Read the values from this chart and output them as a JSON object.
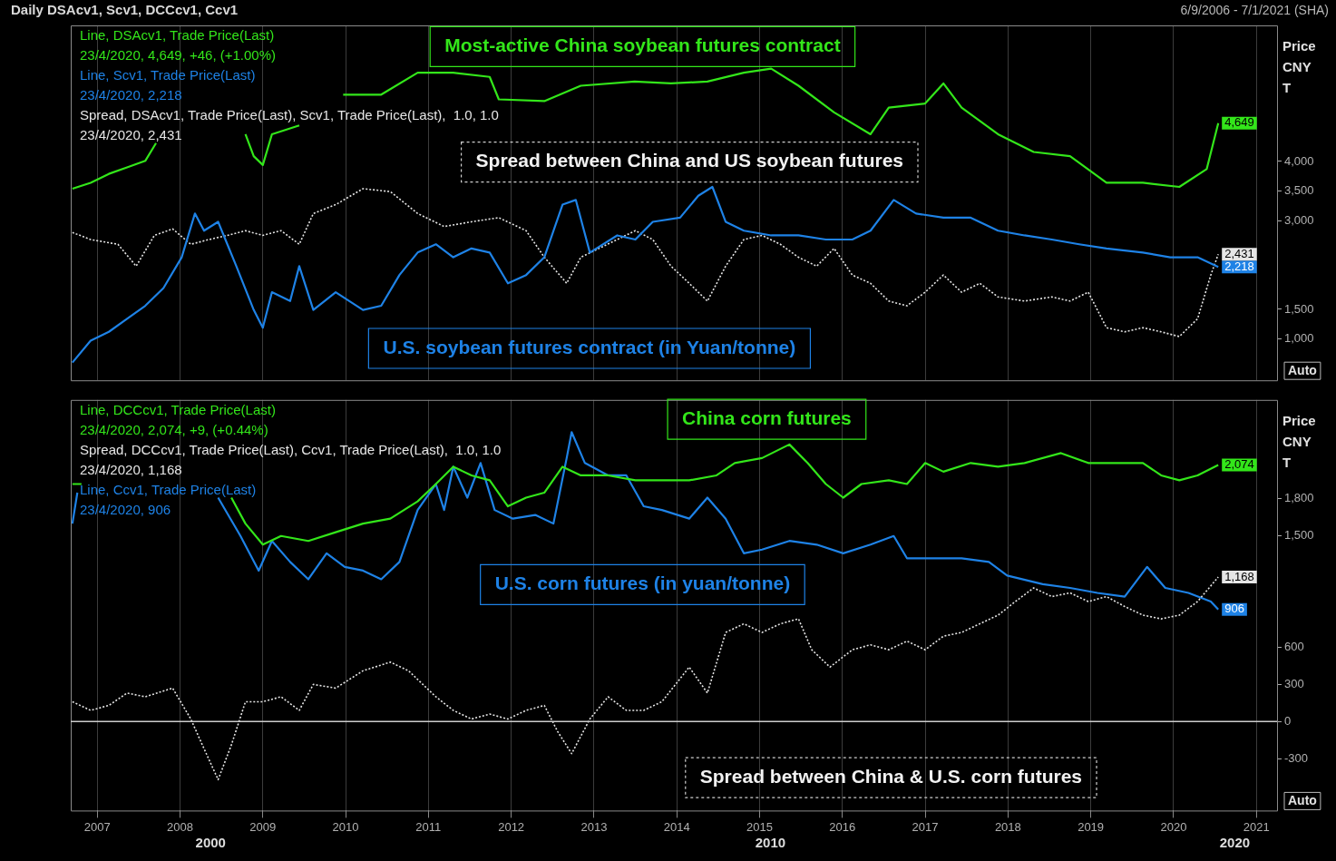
{
  "chart_data": [
    {
      "type": "line",
      "title": "Daily DSAcv1, Scv1, DCCcv1, Ccv1",
      "subtitle": "6/9/2006 - 7/1/2021 (SHA)",
      "ylabel": "Price CNY T",
      "xlim": [
        2006.68,
        2021.25
      ],
      "xticks": [
        2007,
        2008,
        2009,
        2010,
        2011,
        2012,
        2013,
        2014,
        2015,
        2016,
        2017,
        2018,
        2019,
        2020,
        2021
      ],
      "ylim": [
        300,
        6300
      ],
      "yticks": [
        {
          "value": 1000,
          "label": "1,000"
        },
        {
          "value": 1500,
          "label": "1,500"
        },
        {
          "value": 3000,
          "label": "3,000"
        },
        {
          "value": 3500,
          "label": "3,500"
        },
        {
          "value": 4000,
          "label": "4,000"
        }
      ],
      "tick_labels": "y",
      "grid": "x",
      "legend": "top left",
      "annotations": [
        "Most-active China soybean futures contract",
        "U.S. soybean futures contract (in Yuan/tonne)",
        "Spread between China and US soybean futures",
        "Auto"
      ],
      "series": [
        {
          "name": "Line, DSAcv1, Trade Price(Last)\n23/4/2020, 4,649, +46, (+1.00%)",
          "color": "#33e61a",
          "line_style": "solid",
          "x": [
            2006.7,
            2006.92,
            2007.14,
            2007.36,
            2007.58,
            2007.71,
            2008.2,
            2008.79,
            2008.89,
            2009.0,
            2009.11,
            2009.44,
            2009.7,
            2009.97,
            2010.43,
            2010.87,
            2011.3,
            2011.74,
            2011.85,
            2012.4,
            2012.84,
            2013.49,
            2013.93,
            2014.37,
            2014.81,
            2015.14,
            2015.47,
            2015.9,
            2016.34,
            2016.56,
            2017.0,
            2017.22,
            2017.44,
            2017.88,
            2018.31,
            2018.75,
            2019.19,
            2019.63,
            2020.07,
            2020.4,
            2020.54
          ],
          "values": [
            3540,
            3640,
            3790,
            3900,
            4010,
            4310,
            null,
            4460,
            4090,
            3940,
            4460,
            4610,
            null,
            5130,
            5130,
            5500,
            5500,
            5430,
            5050,
            5020,
            5280,
            5350,
            5320,
            5350,
            5500,
            5570,
            5280,
            4830,
            4460,
            4910,
            4980,
            5320,
            4910,
            4460,
            4160,
            4090,
            3640,
            3640,
            3570,
            3870,
            4649
          ],
          "value_labels": [
            null,
            null,
            null,
            null,
            null,
            null,
            null,
            null,
            null,
            null,
            null,
            null,
            null,
            null,
            null,
            null,
            null,
            null,
            null,
            null,
            null,
            null,
            null,
            null,
            null,
            null,
            null,
            null,
            null,
            null,
            null,
            null,
            null,
            null,
            null,
            null,
            null,
            null,
            null,
            null,
            "4,649"
          ]
        },
        {
          "name": "Line, Scv1, Trade Price(Last)\n23/4/2020, 2,218",
          "color": "#1e82e6",
          "line_style": "solid",
          "x": [
            2006.7,
            2006.92,
            2007.14,
            2007.36,
            2007.58,
            2007.8,
            2008.02,
            2008.18,
            2008.29,
            2008.46,
            2008.68,
            2008.89,
            2009.0,
            2009.11,
            2009.33,
            2009.44,
            2009.61,
            2009.88,
            2010.21,
            2010.43,
            2010.65,
            2010.87,
            2011.09,
            2011.3,
            2011.52,
            2011.74,
            2011.96,
            2012.18,
            2012.4,
            2012.62,
            2012.78,
            2012.95,
            2013.28,
            2013.5,
            2013.71,
            2014.04,
            2014.26,
            2014.43,
            2014.59,
            2014.81,
            2015.14,
            2015.47,
            2015.8,
            2016.12,
            2016.34,
            2016.62,
            2016.89,
            2017.22,
            2017.55,
            2017.88,
            2018.2,
            2018.53,
            2018.86,
            2019.19,
            2019.63,
            2019.96,
            2020.29,
            2020.54
          ],
          "values": [
            600,
            970,
            1120,
            1340,
            1560,
            1860,
            2380,
            3120,
            2830,
            2980,
            2230,
            1490,
            1190,
            1790,
            1640,
            2230,
            1490,
            1790,
            1490,
            1560,
            2080,
            2460,
            2600,
            2380,
            2530,
            2460,
            1940,
            2080,
            2380,
            3270,
            3350,
            2460,
            2750,
            2680,
            2980,
            3050,
            3420,
            3570,
            2980,
            2830,
            2750,
            2750,
            2680,
            2680,
            2830,
            3350,
            3120,
            3050,
            3050,
            2830,
            2750,
            2680,
            2600,
            2530,
            2460,
            2380,
            2380,
            2218
          ],
          "value_labels": [
            null,
            null,
            null,
            null,
            null,
            null,
            null,
            null,
            null,
            null,
            null,
            null,
            null,
            null,
            null,
            null,
            null,
            null,
            null,
            null,
            null,
            null,
            null,
            null,
            null,
            null,
            null,
            null,
            null,
            null,
            null,
            null,
            null,
            null,
            null,
            null,
            null,
            null,
            null,
            null,
            null,
            null,
            null,
            null,
            null,
            null,
            null,
            null,
            null,
            null,
            null,
            null,
            null,
            null,
            null,
            null,
            null,
            "2,218"
          ]
        },
        {
          "name": "Spread, DSAcv1, Trade Price(Last), Scv1, Trade Price(Last),  1.0, 1.0\n23/4/2020, 2,431",
          "color": "#e6e6e6",
          "line_style": "dotted",
          "x": [
            2006.7,
            2006.92,
            2007.25,
            2007.47,
            2007.69,
            2007.91,
            2008.13,
            2008.35,
            2008.57,
            2008.79,
            2009.0,
            2009.22,
            2009.44,
            2009.61,
            2009.88,
            2010.21,
            2010.54,
            2010.87,
            2011.19,
            2011.52,
            2011.85,
            2012.18,
            2012.4,
            2012.67,
            2012.84,
            2013.06,
            2013.28,
            2013.5,
            2013.71,
            2013.93,
            2014.15,
            2014.37,
            2014.59,
            2014.81,
            2015.03,
            2015.25,
            2015.47,
            2015.69,
            2015.9,
            2016.12,
            2016.34,
            2016.56,
            2016.78,
            2017.0,
            2017.22,
            2017.44,
            2017.66,
            2017.88,
            2018.2,
            2018.53,
            2018.75,
            2018.97,
            2019.19,
            2019.41,
            2019.63,
            2019.85,
            2020.07,
            2020.29,
            2020.45,
            2020.54
          ],
          "values": [
            2800,
            2680,
            2600,
            2230,
            2750,
            2860,
            2600,
            2680,
            2750,
            2830,
            2750,
            2830,
            2600,
            3120,
            3270,
            3540,
            3490,
            3120,
            2900,
            2980,
            3050,
            2830,
            2380,
            1940,
            2380,
            2530,
            2680,
            2830,
            2680,
            2230,
            1940,
            1640,
            2230,
            2680,
            2750,
            2600,
            2380,
            2230,
            2530,
            2080,
            1940,
            1640,
            1560,
            1790,
            2080,
            1790,
            1940,
            1710,
            1640,
            1710,
            1640,
            1790,
            1190,
            1120,
            1190,
            1120,
            1040,
            1340,
            2080,
            2431
          ],
          "value_labels": [
            null,
            null,
            null,
            null,
            null,
            null,
            null,
            null,
            null,
            null,
            null,
            null,
            null,
            null,
            null,
            null,
            null,
            null,
            null,
            null,
            null,
            null,
            null,
            null,
            null,
            null,
            null,
            null,
            null,
            null,
            null,
            null,
            null,
            null,
            null,
            null,
            null,
            null,
            null,
            null,
            null,
            null,
            null,
            null,
            null,
            null,
            null,
            null,
            null,
            null,
            null,
            null,
            null,
            null,
            null,
            null,
            null,
            null,
            null,
            "2,431"
          ]
        }
      ]
    },
    {
      "type": "line",
      "ylabel": "Price CNY T",
      "xlim": [
        2006.68,
        2021.25
      ],
      "xticks": [
        2007,
        2008,
        2009,
        2010,
        2011,
        2012,
        2013,
        2014,
        2015,
        2016,
        2017,
        2018,
        2019,
        2020,
        2021
      ],
      "ylim": [
        -720,
        2600
      ],
      "yticks": [
        -300,
        0,
        300,
        600,
        {
          "value": 1500,
          "label": "1,500"
        },
        {
          "value": 1800,
          "label": "1,800"
        }
      ],
      "grid": "x",
      "legend": "top left",
      "ref_lines": [
        {
          "axis": "y",
          "value": 0,
          "color": "#cccccc"
        }
      ],
      "annotations": [
        "China corn futures",
        "Spread between China & U.S. corn futures",
        "U.S. corn futures (in yuan/tonne)",
        "Auto",
        "2000",
        "2010",
        "2020"
      ],
      "series": [
        {
          "name": "Line, DCCcv1, Trade Price(Last)\n23/4/2020, 2,074, +9, (+0.44%)",
          "color": "#33e61a",
          "line_style": "solid",
          "x": [
            2006.7,
            2006.81,
            2007.8,
            2008.62,
            2008.79,
            2009.0,
            2009.22,
            2009.55,
            2009.88,
            2010.21,
            2010.54,
            2010.87,
            2011.09,
            2011.3,
            2011.52,
            2011.74,
            2011.96,
            2012.18,
            2012.4,
            2012.62,
            2012.84,
            2013.17,
            2013.5,
            2013.82,
            2014.15,
            2014.48,
            2014.7,
            2015.03,
            2015.36,
            2015.58,
            2015.8,
            2016.01,
            2016.23,
            2016.56,
            2016.78,
            2017.0,
            2017.22,
            2017.55,
            2017.88,
            2018.2,
            2018.64,
            2018.97,
            2019.3,
            2019.63,
            2019.85,
            2020.07,
            2020.29,
            2020.54
          ],
          "values": [
            1920,
            1920,
            null,
            1810,
            1600,
            1430,
            1500,
            1460,
            1530,
            1600,
            1640,
            1780,
            1920,
            2060,
            1990,
            1950,
            1740,
            1810,
            1850,
            2060,
            1990,
            1990,
            1950,
            1950,
            1950,
            1990,
            2090,
            2130,
            2240,
            2090,
            1920,
            1810,
            1920,
            1950,
            1920,
            2090,
            2020,
            2090,
            2060,
            2090,
            2170,
            2090,
            2090,
            2090,
            1990,
            1950,
            1990,
            2074
          ],
          "value_labels": [
            null,
            null,
            null,
            null,
            null,
            null,
            null,
            null,
            null,
            null,
            null,
            null,
            null,
            null,
            null,
            null,
            null,
            null,
            null,
            null,
            null,
            null,
            null,
            null,
            null,
            null,
            null,
            null,
            null,
            null,
            null,
            null,
            null,
            null,
            null,
            null,
            null,
            null,
            null,
            null,
            null,
            null,
            null,
            null,
            null,
            null,
            null,
            "2,074"
          ]
        },
        {
          "name": "Spread, DCCcv1, Trade Price(Last), Ccv1, Trade Price(Last),  1.0, 1.0\n23/4/2020, 1,168",
          "color": "#e6e6e6",
          "line_style": "dotted",
          "x": [
            2006.7,
            2006.92,
            2007.14,
            2007.36,
            2007.58,
            2007.91,
            2008.13,
            2008.29,
            2008.46,
            2008.62,
            2008.79,
            2009.0,
            2009.22,
            2009.44,
            2009.61,
            2009.88,
            2010.21,
            2010.54,
            2010.76,
            2011.09,
            2011.3,
            2011.52,
            2011.74,
            2011.96,
            2012.18,
            2012.4,
            2012.56,
            2012.73,
            2012.95,
            2013.17,
            2013.39,
            2013.6,
            2013.82,
            2014.15,
            2014.37,
            2014.59,
            2014.81,
            2015.03,
            2015.25,
            2015.47,
            2015.63,
            2015.85,
            2016.12,
            2016.34,
            2016.56,
            2016.78,
            2017.0,
            2017.22,
            2017.44,
            2017.66,
            2017.88,
            2018.09,
            2018.31,
            2018.53,
            2018.75,
            2018.97,
            2019.19,
            2019.41,
            2019.63,
            2019.85,
            2020.07,
            2020.29,
            2020.54
          ],
          "values": [
            160,
            90,
            130,
            230,
            200,
            270,
            20,
            -220,
            -470,
            -190,
            160,
            160,
            200,
            90,
            300,
            270,
            410,
            480,
            410,
            200,
            90,
            20,
            60,
            20,
            90,
            130,
            -80,
            -260,
            20,
            200,
            90,
            90,
            160,
            440,
            230,
            720,
            790,
            720,
            790,
            830,
            580,
            440,
            580,
            620,
            580,
            650,
            580,
            690,
            720,
            790,
            860,
            970,
            1080,
            1010,
            1040,
            970,
            1010,
            930,
            860,
            830,
            860,
            970,
            1168
          ],
          "value_labels": [
            null,
            null,
            null,
            null,
            null,
            null,
            null,
            null,
            null,
            null,
            null,
            null,
            null,
            null,
            null,
            null,
            null,
            null,
            null,
            null,
            null,
            null,
            null,
            null,
            null,
            null,
            null,
            null,
            null,
            null,
            null,
            null,
            null,
            null,
            null,
            null,
            null,
            null,
            null,
            null,
            null,
            null,
            null,
            null,
            null,
            null,
            null,
            null,
            null,
            null,
            null,
            null,
            null,
            null,
            null,
            null,
            null,
            null,
            null,
            null,
            null,
            null,
            "1,168"
          ]
        },
        {
          "name": "Line, Ccv1, Trade Price(Last)\n23/4/2020, 906",
          "color": "#1e82e6",
          "line_style": "solid",
          "x": [
            2006.7,
            2006.76,
            2007.8,
            2008.46,
            2008.73,
            2008.95,
            2009.11,
            2009.33,
            2009.55,
            2009.77,
            2009.99,
            2010.21,
            2010.43,
            2010.65,
            2010.87,
            2011.09,
            2011.19,
            2011.3,
            2011.47,
            2011.63,
            2011.8,
            2012.02,
            2012.29,
            2012.51,
            2012.67,
            2012.73,
            2012.89,
            2013.17,
            2013.39,
            2013.6,
            2013.82,
            2014.15,
            2014.37,
            2014.59,
            2014.81,
            2015.03,
            2015.36,
            2015.69,
            2016.01,
            2016.34,
            2016.62,
            2016.78,
            2017.11,
            2017.44,
            2017.77,
            2017.99,
            2018.42,
            2018.75,
            2019.08,
            2019.41,
            2019.68,
            2019.9,
            2020.18,
            2020.45,
            2020.54
          ],
          "values": [
            1600,
            1850,
            null,
            1810,
            1500,
            1220,
            1460,
            1290,
            1150,
            1360,
            1250,
            1220,
            1150,
            1290,
            1710,
            1920,
            1710,
            2060,
            1810,
            2090,
            1710,
            1640,
            1670,
            1600,
            2130,
            2340,
            2090,
            1990,
            1990,
            1740,
            1710,
            1640,
            1810,
            1640,
            1360,
            1390,
            1460,
            1430,
            1360,
            1430,
            1500,
            1320,
            1320,
            1320,
            1290,
            1180,
            1110,
            1080,
            1040,
            1010,
            1250,
            1080,
            1040,
            970,
            906
          ],
          "value_labels": [
            null,
            null,
            null,
            null,
            null,
            null,
            null,
            null,
            null,
            null,
            null,
            null,
            null,
            null,
            null,
            null,
            null,
            null,
            null,
            null,
            null,
            null,
            null,
            null,
            null,
            null,
            null,
            null,
            null,
            null,
            null,
            null,
            null,
            null,
            null,
            null,
            null,
            null,
            null,
            null,
            null,
            null,
            null,
            null,
            null,
            null,
            null,
            null,
            null,
            null,
            null,
            null,
            null,
            null,
            "906"
          ]
        }
      ]
    }
  ]
}
